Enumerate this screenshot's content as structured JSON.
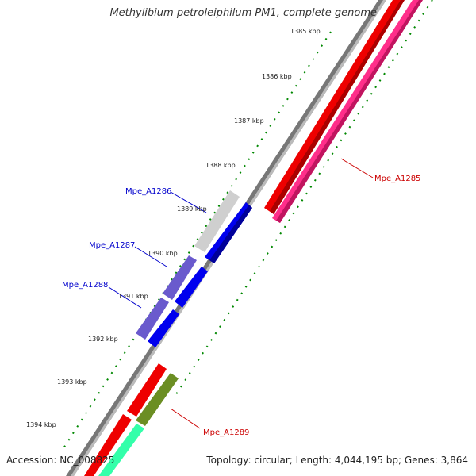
{
  "title": "Methylibium petroleiphilum PM1, complete genome",
  "footer": {
    "accession": "Accession: NC_008825",
    "summary": "Topology: circular; Length: 4,044,195 bp; Genes: 3,864"
  },
  "ticks": [
    {
      "label": "1385 kbp"
    },
    {
      "label": "1386 kbp"
    },
    {
      "label": "1387 kbp"
    },
    {
      "label": "1388 kbp"
    },
    {
      "label": "1389 kbp"
    },
    {
      "label": "1390 kbp"
    },
    {
      "label": "1391 kbp"
    },
    {
      "label": "1392 kbp"
    },
    {
      "label": "1393 kbp"
    },
    {
      "label": "1394 kbp"
    }
  ],
  "genes": [
    {
      "name": "Mpe_A1285",
      "color": "#cc0000"
    },
    {
      "name": "Mpe_A1286",
      "color": "#0000cc"
    },
    {
      "name": "Mpe_A1287",
      "color": "#0000cc"
    },
    {
      "name": "Mpe_A1288",
      "color": "#0000cc"
    },
    {
      "name": "Mpe_A1289",
      "color": "#cc0000"
    }
  ],
  "colors": {
    "backbone": "#888888",
    "forward_cds": "#ff0000",
    "reverse_cds": "#0000ff",
    "pink_track": "#ff2288",
    "gray_track": "#cccccc",
    "purple_track": "#6a5acd",
    "olive_track": "#6b8e23",
    "aqua_track": "#33ffaa",
    "tick_color": "#008800"
  }
}
